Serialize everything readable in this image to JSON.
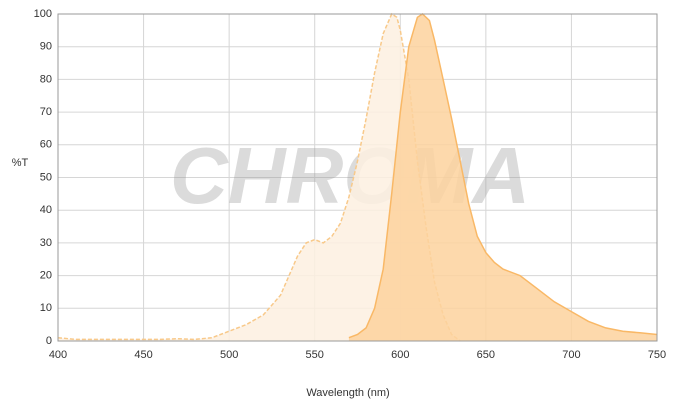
{
  "chart_data": {
    "type": "area",
    "watermark": "CHROMA",
    "x_label": "Wavelength (nm)",
    "y_label": "%T",
    "xlim": [
      400,
      750
    ],
    "ylim": [
      0,
      100
    ],
    "xticks": [
      400,
      450,
      500,
      550,
      600,
      650,
      700,
      750
    ],
    "yticks": [
      0,
      10,
      20,
      30,
      40,
      50,
      60,
      70,
      80,
      90,
      100
    ],
    "grid": true,
    "series": [
      {
        "color": "#f8c98a",
        "fill": "#fdf0e1",
        "dashed": true,
        "x": [
          400,
          410,
          420,
          440,
          460,
          470,
          480,
          490,
          500,
          510,
          520,
          530,
          540,
          545,
          550,
          555,
          560,
          565,
          570,
          575,
          580,
          585,
          590,
          595,
          598,
          600,
          605,
          610,
          615,
          620,
          625,
          630,
          635
        ],
        "values": [
          1,
          0.5,
          0.5,
          0.5,
          0.5,
          0.7,
          0.5,
          1,
          3,
          5,
          8,
          14,
          26,
          30,
          31,
          30,
          32,
          36,
          44,
          55,
          68,
          82,
          94,
          100,
          99,
          95,
          80,
          55,
          35,
          18,
          8,
          2,
          0
        ]
      },
      {
        "color": "#f9b866",
        "fill": "#fdd29e",
        "dashed": false,
        "x": [
          570,
          575,
          580,
          585,
          590,
          595,
          600,
          605,
          610,
          613,
          617,
          620,
          625,
          630,
          635,
          640,
          645,
          650,
          655,
          660,
          670,
          680,
          690,
          700,
          710,
          720,
          730,
          740,
          750
        ],
        "values": [
          1,
          2,
          4,
          10,
          22,
          45,
          70,
          90,
          99,
          100,
          98,
          92,
          80,
          68,
          55,
          42,
          32,
          27,
          24,
          22,
          20,
          16,
          12,
          9,
          6,
          4,
          3,
          2.5,
          2
        ]
      }
    ]
  }
}
